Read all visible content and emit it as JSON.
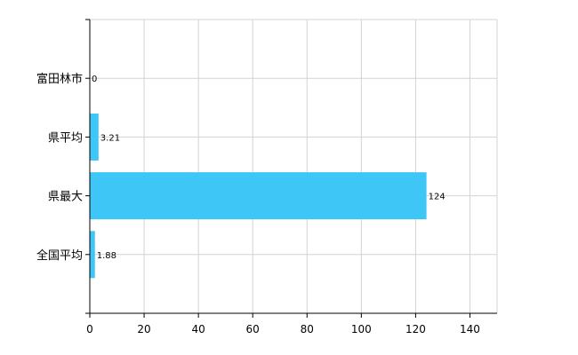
{
  "chart_data": {
    "type": "bar",
    "orientation": "horizontal",
    "title": "",
    "xlabel": "",
    "ylabel": "",
    "categories": [
      "富田林市",
      "県平均",
      "県最大",
      "全国平均"
    ],
    "values": [
      0,
      3.21,
      124,
      1.88
    ],
    "data_labels": [
      "0",
      "3.21",
      "124",
      "1.88"
    ],
    "xlim": [
      0,
      150
    ],
    "xticks": [
      0,
      20,
      40,
      60,
      80,
      100,
      120,
      140
    ],
    "xtick_labels": [
      "0",
      "20",
      "40",
      "60",
      "80",
      "100",
      "120",
      "140"
    ],
    "grid": true,
    "legend": "none",
    "bar_color": "#3ec6f7",
    "grid_color": "#d3d3d3",
    "axis_color": "#000000"
  }
}
